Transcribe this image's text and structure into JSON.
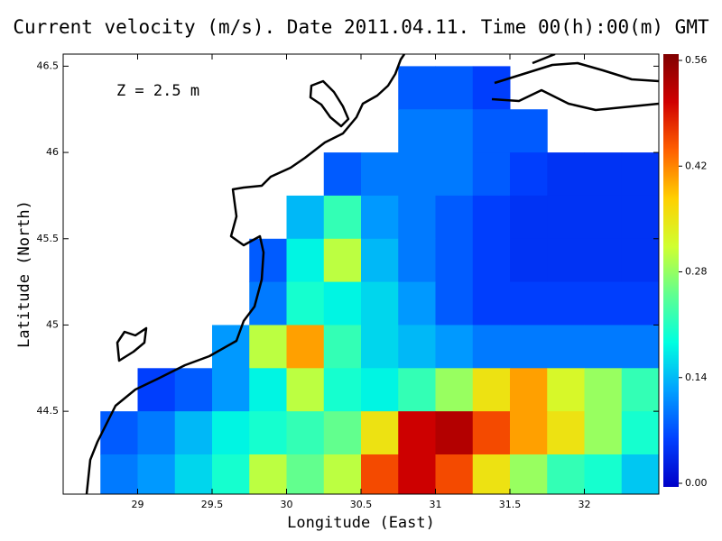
{
  "chart_data": {
    "type": "heatmap",
    "title": "Current velocity (m/s). Date 2011.04.11. Time 00(h):00(m) GMT",
    "annotation": "Z = 2.5 m",
    "x_label": "Longitude (East)",
    "y_label": "Latitude (North)",
    "xlim": [
      28.5,
      32.5
    ],
    "ylim": [
      44.02,
      46.57
    ],
    "xticks": [
      29,
      29.5,
      30,
      30.5,
      31,
      31.5,
      32
    ],
    "yticks": [
      44.5,
      45,
      45.5,
      46,
      46.5
    ],
    "x": [
      28.625,
      28.875,
      29.125,
      29.375,
      29.625,
      29.875,
      30.125,
      30.375,
      30.625,
      30.875,
      31.125,
      31.375,
      31.625,
      31.875,
      32.125,
      32.375
    ],
    "y": [
      46.375,
      46.125,
      45.875,
      45.625,
      45.375,
      45.125,
      44.875,
      44.625,
      44.375,
      44.125
    ],
    "values": [
      [
        null,
        null,
        null,
        null,
        null,
        null,
        null,
        null,
        null,
        0.08,
        0.08,
        0.06,
        null,
        null,
        null,
        null
      ],
      [
        null,
        null,
        null,
        null,
        null,
        null,
        null,
        null,
        null,
        0.1,
        0.1,
        0.08,
        0.08,
        null,
        null,
        null
      ],
      [
        null,
        null,
        null,
        null,
        null,
        null,
        null,
        0.08,
        0.1,
        0.1,
        0.1,
        0.08,
        0.06,
        0.05,
        0.05,
        0.05
      ],
      [
        null,
        null,
        null,
        null,
        null,
        null,
        0.14,
        0.22,
        0.12,
        0.1,
        0.08,
        0.06,
        0.05,
        0.05,
        0.05,
        0.05
      ],
      [
        null,
        null,
        null,
        null,
        null,
        0.08,
        0.18,
        0.3,
        0.14,
        0.1,
        0.08,
        0.06,
        0.05,
        0.05,
        0.05,
        0.05
      ],
      [
        null,
        null,
        null,
        null,
        null,
        0.1,
        0.2,
        0.18,
        0.16,
        0.12,
        0.08,
        0.06,
        0.06,
        0.06,
        0.06,
        0.06
      ],
      [
        null,
        null,
        null,
        null,
        0.12,
        0.3,
        0.4,
        0.22,
        0.16,
        0.14,
        0.12,
        0.1,
        0.1,
        0.1,
        0.1,
        0.1
      ],
      [
        null,
        null,
        0.06,
        0.08,
        0.12,
        0.18,
        0.3,
        0.2,
        0.18,
        0.22,
        0.28,
        0.35,
        0.4,
        0.32,
        0.28,
        0.22
      ],
      [
        null,
        0.08,
        0.1,
        0.14,
        0.18,
        0.2,
        0.22,
        0.25,
        0.35,
        0.5,
        0.52,
        0.45,
        0.4,
        0.35,
        0.28,
        0.2
      ],
      [
        null,
        0.1,
        0.12,
        0.16,
        0.2,
        0.3,
        0.25,
        0.3,
        0.45,
        0.5,
        0.45,
        0.35,
        0.28,
        0.22,
        0.2,
        0.15
      ]
    ],
    "clim": [
      0,
      0.56
    ],
    "cticks": [
      {
        "value": 0,
        "label": "0.00"
      },
      {
        "value": 0.14,
        "label": "0.14"
      },
      {
        "value": 0.28,
        "label": "0.28"
      },
      {
        "value": 0.42,
        "label": "0.42"
      },
      {
        "value": 0.56,
        "label": "0.56"
      }
    ],
    "colormap": [
      "#0000c8",
      "#0040ff",
      "#00a0ff",
      "#00ffe0",
      "#60ff90",
      "#d0ff30",
      "#ffd000",
      "#ff6000",
      "#d00000",
      "#800000"
    ]
  }
}
